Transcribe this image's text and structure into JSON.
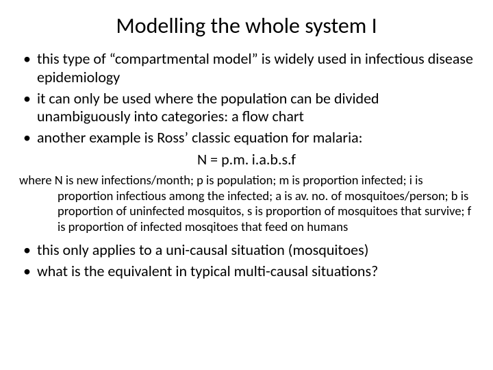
{
  "slide": {
    "title": "Modelling the whole system I",
    "bullets": {
      "b1": "this type of “compartmental model” is widely used in infectious disease epidemiology",
      "b2": "it can only be used where the population can be divided unambiguously into categories: a flow chart",
      "b3": "another example is Ross’ classic equation for malaria:",
      "b4": "this only applies to a uni-causal situation (mosquitoes)",
      "b5": "what is the equivalent in typical multi-causal situations?"
    },
    "equation": "N = p.m. i.a.b.s.f",
    "where": "where N is new infections/month; p is population; m is proportion infected; i is proportion infectious among the infected; a is av. no. of mosquitoes/person; b is proportion of uninfected mosquitos, s is proportion of mosquitoes that survive; f is proportion of infected mosqitoes that feed on humans"
  },
  "style": {
    "background_color": "#ffffff",
    "text_color": "#000000",
    "title_fontsize": 32,
    "bullet_fontsize": 22,
    "where_fontsize": 18.5,
    "font_family": "Calibri"
  }
}
